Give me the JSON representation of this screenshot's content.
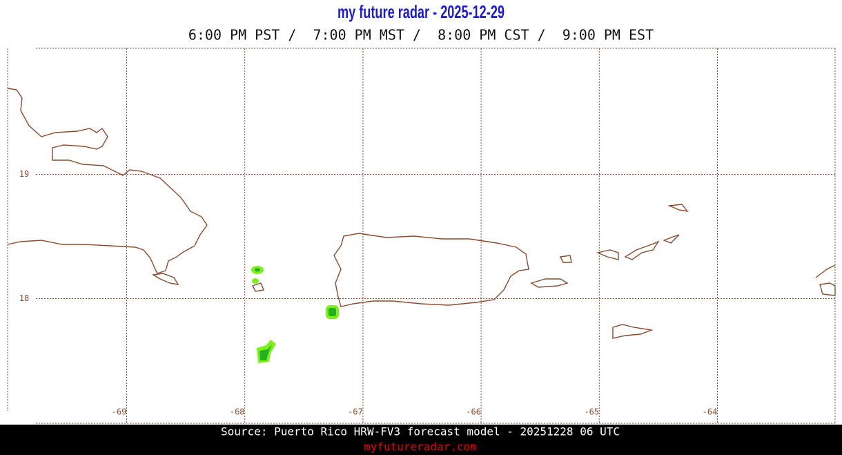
{
  "header": {
    "title": "my future radar - 2025-12-29",
    "times": "6:00 PM PST /  7:00 PM MST /  8:00 PM CST /  9:00 PM EST"
  },
  "map": {
    "longitude_labels": [
      "-69",
      "-68",
      "-67",
      "-66",
      "-65",
      "-64"
    ],
    "latitude_labels": [
      "19",
      "18"
    ]
  },
  "footer": {
    "source": "Source: Puerto Rico HRW-FV3 forecast model - 20251228 06 UTC",
    "site": "myfutureradar.com"
  }
}
